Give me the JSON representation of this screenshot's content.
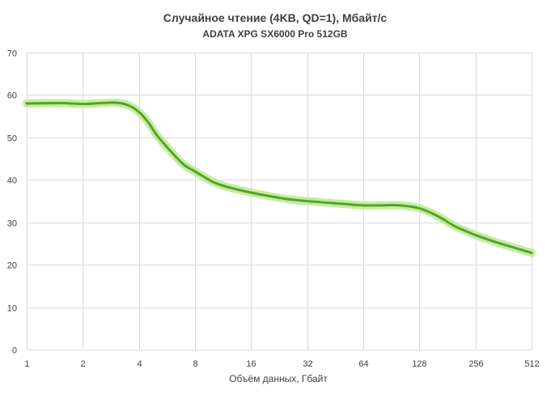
{
  "chart_data": {
    "type": "line",
    "title": "Случайное чтение (4KB, QD=1), Мбайт/с",
    "subtitle": "ADATA XPG SX6000 Pro 512GB",
    "xlabel": "Объём данных, Гбайт",
    "ylabel": "",
    "x_scale": "log2",
    "x_ticks": [
      1,
      2,
      4,
      8,
      16,
      32,
      64,
      128,
      256,
      512
    ],
    "x_tick_labels": [
      "1",
      "2",
      "4",
      "8",
      "16",
      "32",
      "64",
      "128",
      "256",
      "512"
    ],
    "ylim": [
      0,
      70
    ],
    "y_ticks": [
      0,
      10,
      20,
      30,
      40,
      50,
      60,
      70
    ],
    "y_tick_labels": [
      "0",
      "10",
      "20",
      "30",
      "40",
      "50",
      "60",
      "70"
    ],
    "grid": true,
    "legend": "none",
    "series": [
      {
        "color": "#5aa02c",
        "glow_color": "#b7ec8e",
        "x": [
          1,
          1.5,
          2,
          2.5,
          3,
          3.5,
          4,
          4.5,
          5,
          6,
          7,
          8,
          10,
          12,
          16,
          24,
          32,
          48,
          64,
          80,
          100,
          128,
          160,
          200,
          256,
          320,
          400,
          512
        ],
        "y": [
          58,
          58.1,
          57.9,
          58.1,
          58.2,
          57.6,
          56,
          53.5,
          50.5,
          46.5,
          43.5,
          42,
          39.5,
          38.3,
          37,
          35.6,
          35,
          34.4,
          34,
          34,
          34,
          33.3,
          31.5,
          29,
          27,
          25.5,
          24.2,
          22.8
        ]
      }
    ]
  }
}
